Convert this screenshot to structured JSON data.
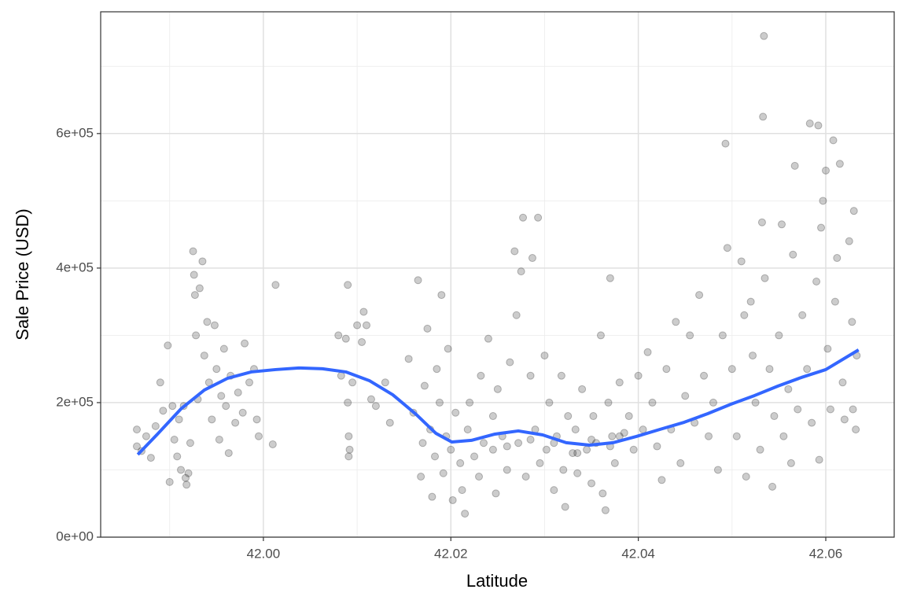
{
  "chart_data": {
    "type": "scatter",
    "x_label": "Latitude",
    "y_label": "Sale Price (USD)",
    "xlim": [
      41.98264,
      42.0673
    ],
    "ylim": [
      0,
      781000
    ],
    "xticks": [
      {
        "value": 42.0,
        "label": "42.00"
      },
      {
        "value": 42.02,
        "label": "42.02"
      },
      {
        "value": 42.04,
        "label": "42.04"
      },
      {
        "value": 42.06,
        "label": "42.06"
      }
    ],
    "yticks": [
      {
        "value": 0,
        "label": "0e+00"
      },
      {
        "value": 200000,
        "label": "2e+05"
      },
      {
        "value": 400000,
        "label": "4e+05"
      },
      {
        "value": 600000,
        "label": "6e+05"
      }
    ],
    "x_minor_grid": [
      41.99,
      42.01,
      42.03,
      42.05
    ],
    "y_minor_grid": [
      100000,
      300000,
      500000,
      700000
    ],
    "grid": true,
    "points": {
      "color": "#000000",
      "opacity": 0.2,
      "x": [
        41.9865,
        41.9865,
        41.987,
        41.9875,
        41.988,
        41.9885,
        41.989,
        41.9893,
        41.9898,
        41.99,
        41.9903,
        41.9905,
        41.9908,
        41.991,
        41.9912,
        41.9915,
        41.9917,
        41.9918,
        41.992,
        41.9922,
        41.9925,
        41.9926,
        41.9927,
        41.9928,
        41.993,
        41.9932,
        41.9935,
        41.9937,
        41.994,
        41.9942,
        41.9945,
        41.9948,
        41.995,
        41.9953,
        41.9955,
        41.9958,
        41.996,
        41.9963,
        41.9965,
        41.997,
        41.9973,
        41.9978,
        41.998,
        41.9985,
        41.999,
        41.9993,
        41.9995,
        42.001,
        42.0013,
        42.008,
        42.0083,
        42.0088,
        42.009,
        42.009,
        42.0091,
        42.0091,
        42.0092,
        42.0095,
        42.01,
        42.0105,
        42.0107,
        42.011,
        42.0115,
        42.012,
        42.013,
        42.0135,
        42.0155,
        42.016,
        42.0165,
        42.0168,
        42.017,
        42.0172,
        42.0175,
        42.0178,
        42.018,
        42.0183,
        42.0185,
        42.0188,
        42.019,
        42.0192,
        42.0195,
        42.0197,
        42.02,
        42.0202,
        42.0205,
        42.021,
        42.0212,
        42.0215,
        42.0218,
        42.022,
        42.0225,
        42.023,
        42.0232,
        42.0235,
        42.024,
        42.0245,
        42.0248,
        42.025,
        42.0255,
        42.026,
        42.0263,
        42.0268,
        42.027,
        42.0272,
        42.0275,
        42.0277,
        42.028,
        42.0285,
        42.0287,
        42.029,
        42.0293,
        42.0295,
        42.03,
        42.0302,
        42.0305,
        42.031,
        42.0313,
        42.0318,
        42.032,
        42.0322,
        42.0325,
        42.033,
        42.0333,
        42.0335,
        42.034,
        42.0345,
        42.035,
        42.0352,
        42.0355,
        42.036,
        42.0362,
        42.0365,
        42.0368,
        42.037,
        42.0372,
        42.0375,
        42.038,
        42.0385,
        42.039,
        42.0395,
        42.04,
        42.0405,
        42.041,
        42.0415,
        42.042,
        42.0425,
        42.043,
        42.0435,
        42.044,
        42.0445,
        42.045,
        42.0455,
        42.046,
        42.0465,
        42.047,
        42.0475,
        42.048,
        42.0485,
        42.049,
        42.0493,
        42.0495,
        42.05,
        42.0505,
        42.051,
        42.0513,
        42.0515,
        42.052,
        42.0522,
        42.0525,
        42.053,
        42.0532,
        42.0533,
        42.0534,
        42.0535,
        42.054,
        42.0543,
        42.0545,
        42.055,
        42.0553,
        42.0555,
        42.056,
        42.0563,
        42.0565,
        42.0567,
        42.057,
        42.0575,
        42.058,
        42.0583,
        42.0585,
        42.059,
        42.0592,
        42.0593,
        42.0595,
        42.0597,
        42.06,
        42.0602,
        42.0605,
        42.0608,
        42.061,
        42.0612,
        42.0615,
        42.0618,
        42.062,
        42.0625,
        42.0628,
        42.063,
        42.0632,
        42.0633,
        42.0629,
        42.026,
        42.031,
        42.0335,
        42.035,
        42.037,
        42.038,
        42.0245,
        42.0285
      ],
      "values": [
        160000,
        135000,
        128000,
        150000,
        118000,
        165000,
        230000,
        188000,
        285000,
        82000,
        195000,
        145000,
        120000,
        175000,
        100000,
        195000,
        88000,
        78000,
        95000,
        140000,
        425000,
        390000,
        360000,
        300000,
        205000,
        370000,
        410000,
        270000,
        320000,
        230000,
        175000,
        315000,
        250000,
        145000,
        210000,
        280000,
        195000,
        125000,
        240000,
        170000,
        215000,
        185000,
        288000,
        230000,
        250000,
        175000,
        150000,
        138000,
        375000,
        300000,
        240000,
        295000,
        375000,
        200000,
        150000,
        120000,
        130000,
        230000,
        315000,
        290000,
        335000,
        315000,
        205000,
        195000,
        230000,
        170000,
        265000,
        185000,
        382000,
        90000,
        140000,
        225000,
        310000,
        160000,
        60000,
        120000,
        250000,
        200000,
        360000,
        95000,
        150000,
        280000,
        130000,
        55000,
        185000,
        110000,
        70000,
        35000,
        160000,
        200000,
        120000,
        90000,
        240000,
        140000,
        295000,
        180000,
        65000,
        220000,
        150000,
        100000,
        260000,
        425000,
        330000,
        140000,
        395000,
        475000,
        90000,
        240000,
        415000,
        160000,
        475000,
        110000,
        270000,
        130000,
        200000,
        70000,
        150000,
        240000,
        100000,
        45000,
        180000,
        125000,
        160000,
        95000,
        220000,
        130000,
        80000,
        180000,
        140000,
        300000,
        65000,
        40000,
        200000,
        385000,
        150000,
        110000,
        230000,
        155000,
        180000,
        130000,
        240000,
        160000,
        275000,
        200000,
        135000,
        85000,
        250000,
        160000,
        320000,
        110000,
        210000,
        300000,
        170000,
        360000,
        240000,
        150000,
        200000,
        100000,
        300000,
        585000,
        430000,
        250000,
        150000,
        410000,
        330000,
        90000,
        350000,
        270000,
        200000,
        130000,
        468000,
        625000,
        745000,
        385000,
        250000,
        75000,
        180000,
        300000,
        465000,
        150000,
        220000,
        110000,
        420000,
        552000,
        190000,
        330000,
        250000,
        615000,
        170000,
        380000,
        612000,
        115000,
        460000,
        500000,
        545000,
        280000,
        190000,
        590000,
        350000,
        415000,
        555000,
        230000,
        175000,
        440000,
        320000,
        485000,
        160000,
        270000,
        190000,
        135000,
        140000,
        125000,
        145000,
        135000,
        150000,
        130000,
        145000
      ]
    },
    "smooth": {
      "color": "#3366ff",
      "x": [
        41.9866,
        41.9887,
        41.9912,
        41.9937,
        41.9962,
        41.9987,
        42.0013,
        42.0038,
        42.0063,
        42.0088,
        42.0113,
        42.0138,
        42.0163,
        42.0184,
        42.0201,
        42.0222,
        42.0247,
        42.0272,
        42.0298,
        42.0323,
        42.0348,
        42.0373,
        42.0398,
        42.0423,
        42.0449,
        42.0474,
        42.0499,
        42.0524,
        42.0549,
        42.0574,
        42.06,
        42.0635
      ],
      "values": [
        122800,
        153200,
        190600,
        218700,
        236300,
        245600,
        249100,
        251500,
        250300,
        245600,
        232700,
        211700,
        182500,
        154400,
        141500,
        143900,
        153200,
        157900,
        152000,
        140400,
        136800,
        140400,
        149700,
        160200,
        170800,
        183600,
        197700,
        210500,
        224600,
        237400,
        249100,
        278400
      ]
    }
  }
}
